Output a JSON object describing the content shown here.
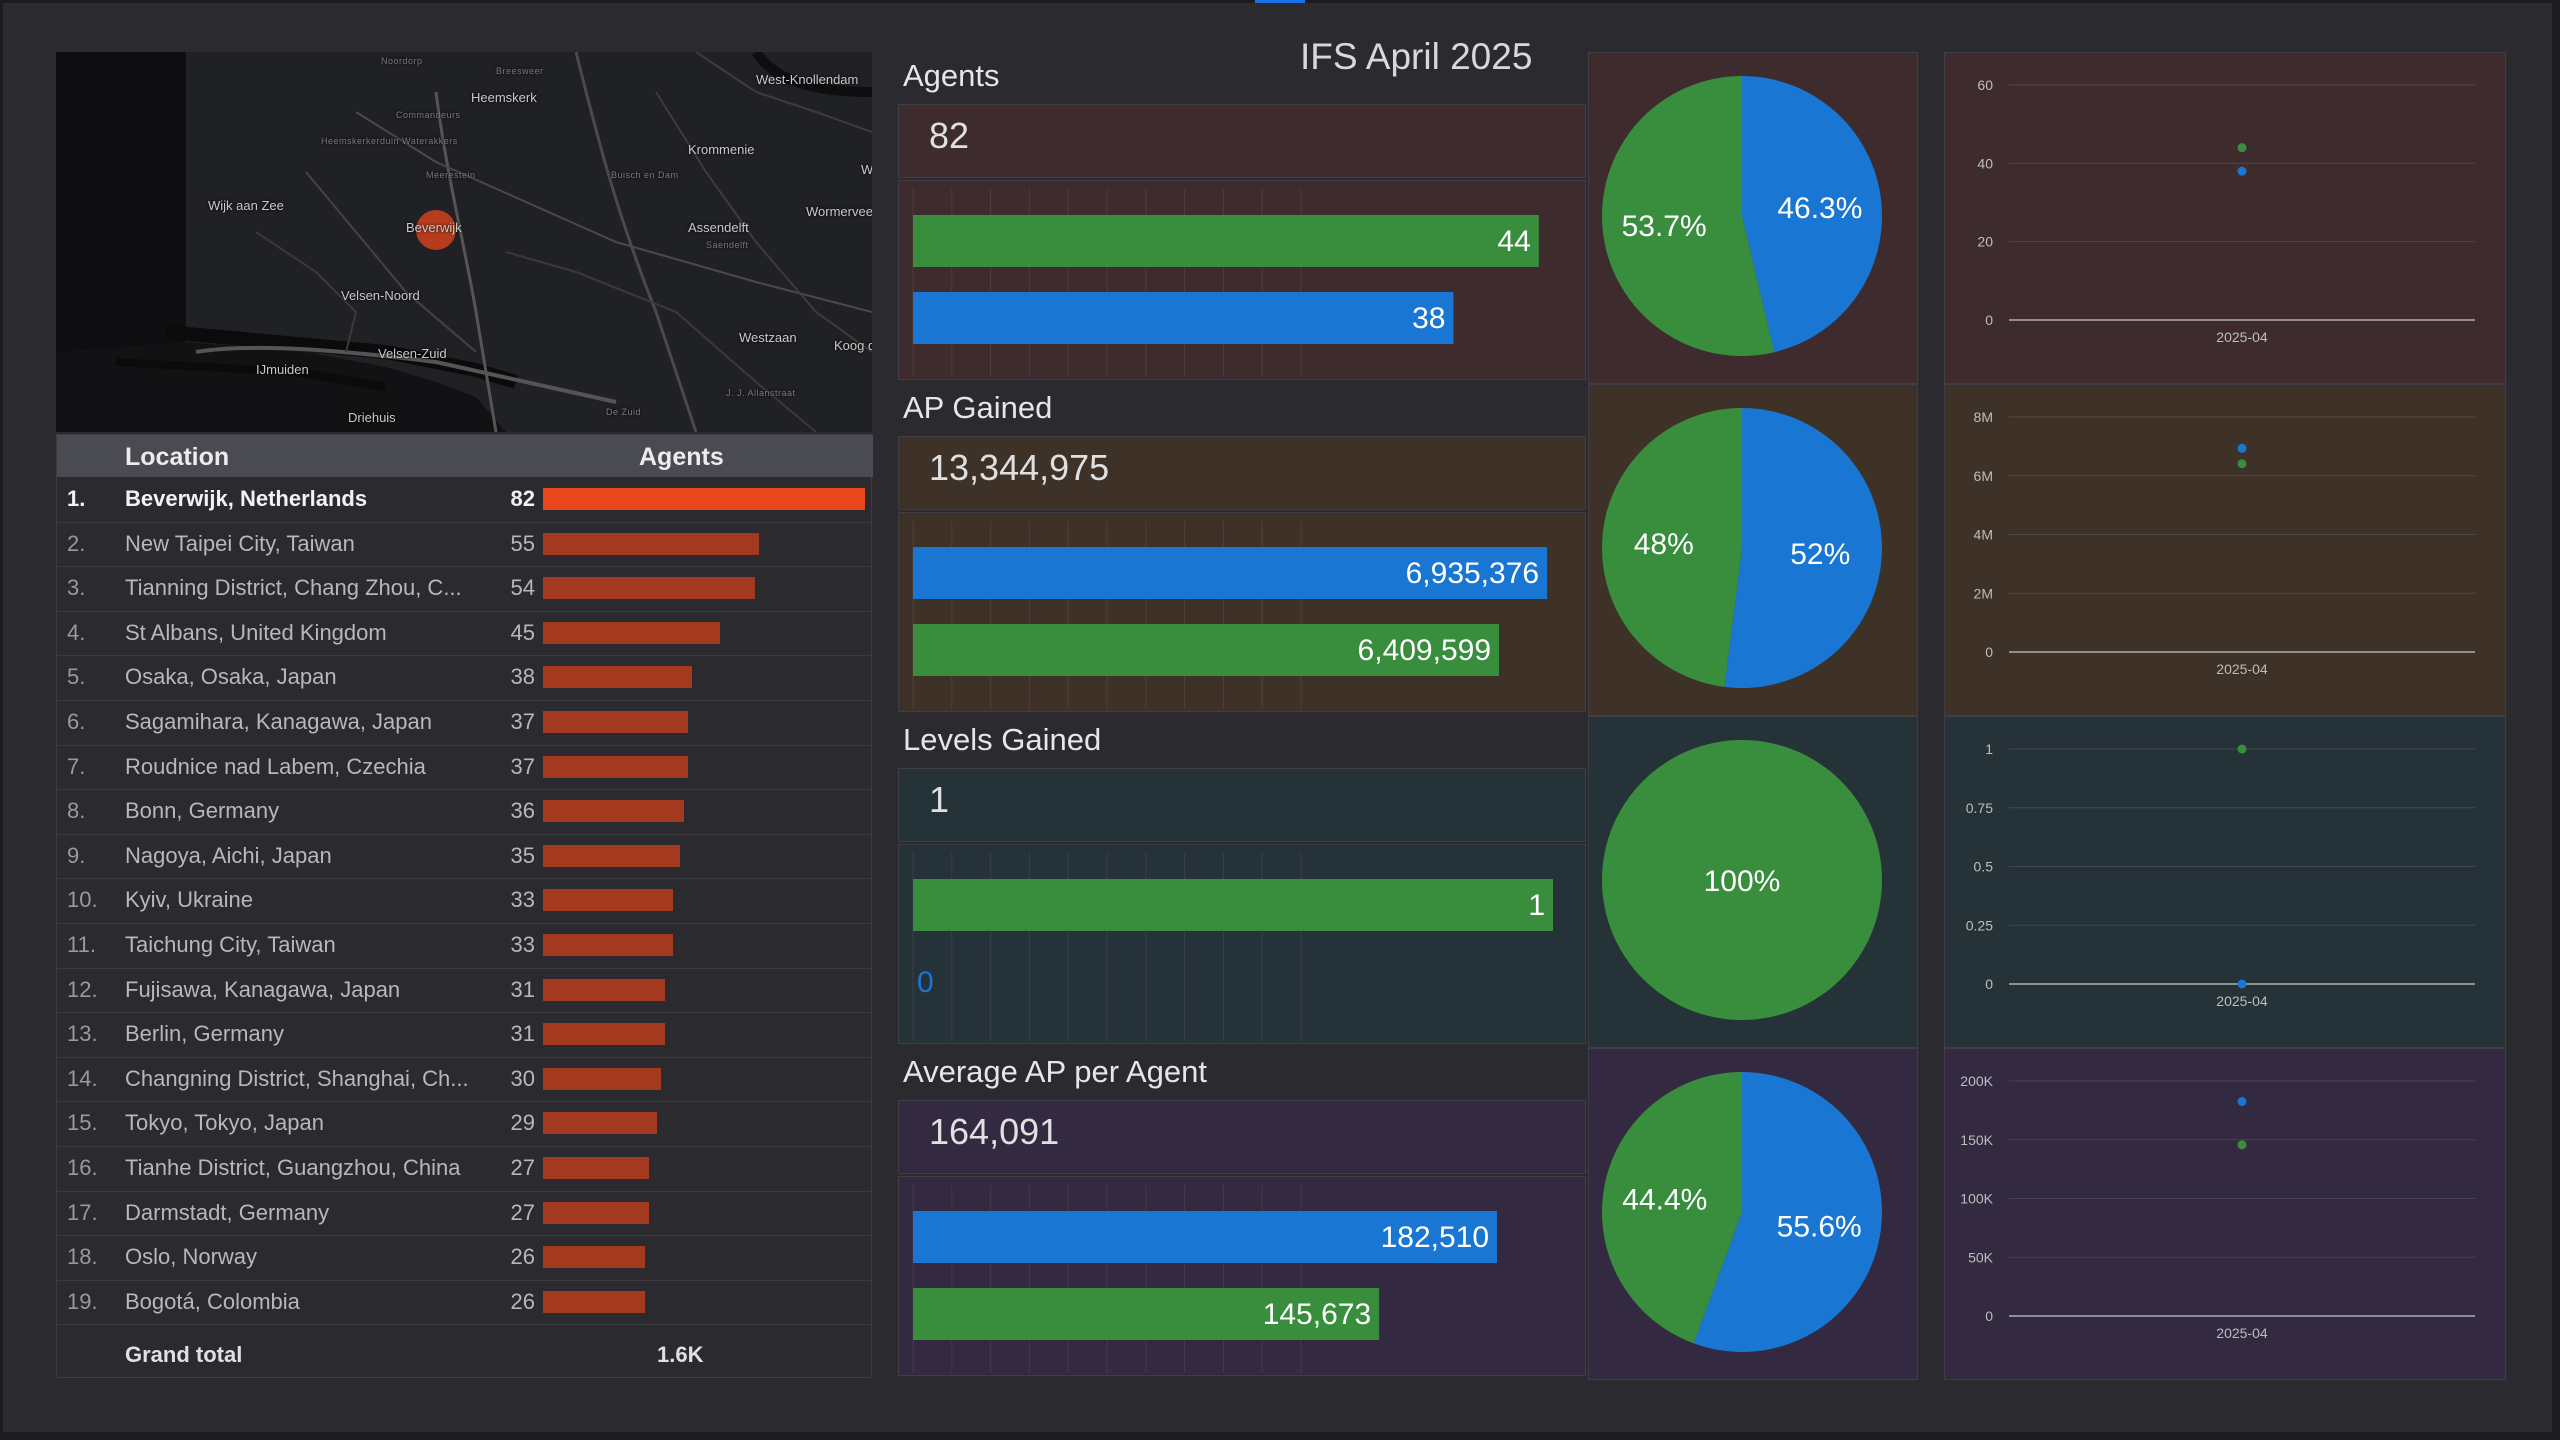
{
  "dashboard_title": "IFS April 2025",
  "colors": {
    "green": "#388e3c",
    "blue": "#1976d2",
    "bar_top": "#e8461b",
    "bar": "#a33a20",
    "sec1_bg": "#3e2b2e",
    "sec2_bg": "#3e3128",
    "sec3_bg": "#253238",
    "sec4_bg": "#332940"
  },
  "map": {
    "places": [
      "Noordorp",
      "Breesweer",
      "West-Knollendam",
      "Heemskerk",
      "Commandeurs",
      "Heemskerkerduin Waterakkers",
      "Krommenie",
      "Meerestein",
      "Buisch en Dam",
      "Wijk aan Zee",
      "Beverwijk",
      "Assendelft",
      "Saendelft",
      "Wormerveer",
      "Velsen-Noord",
      "Westzaan",
      "Velsen-Zuid",
      "Koog de Z",
      "IJmuiden",
      "J. J. Allanstraat",
      "De Zuid",
      "Driehuis",
      "W"
    ]
  },
  "table": {
    "headers": {
      "location": "Location",
      "agents": "Agents"
    },
    "rows": [
      {
        "num": "1.",
        "location": "Beverwijk, Netherlands",
        "agents": 82
      },
      {
        "num": "2.",
        "location": "New Taipei City, Taiwan",
        "agents": 55
      },
      {
        "num": "3.",
        "location": "Tianning District, Chang Zhou, C...",
        "agents": 54
      },
      {
        "num": "4.",
        "location": "St Albans, United Kingdom",
        "agents": 45
      },
      {
        "num": "5.",
        "location": "Osaka, Osaka, Japan",
        "agents": 38
      },
      {
        "num": "6.",
        "location": "Sagamihara, Kanagawa, Japan",
        "agents": 37
      },
      {
        "num": "7.",
        "location": "Roudnice nad Labem, Czechia",
        "agents": 37
      },
      {
        "num": "8.",
        "location": "Bonn, Germany",
        "agents": 36
      },
      {
        "num": "9.",
        "location": "Nagoya, Aichi, Japan",
        "agents": 35
      },
      {
        "num": "10.",
        "location": "Kyiv, Ukraine",
        "agents": 33
      },
      {
        "num": "11.",
        "location": "Taichung City, Taiwan",
        "agents": 33
      },
      {
        "num": "12.",
        "location": "Fujisawa, Kanagawa, Japan",
        "agents": 31
      },
      {
        "num": "13.",
        "location": "Berlin, Germany",
        "agents": 31
      },
      {
        "num": "14.",
        "location": "Changning District, Shanghai, Ch...",
        "agents": 30
      },
      {
        "num": "15.",
        "location": "Tokyo, Tokyo, Japan",
        "agents": 29
      },
      {
        "num": "16.",
        "location": "Tianhe District, Guangzhou, China",
        "agents": 27
      },
      {
        "num": "17.",
        "location": "Darmstadt, Germany",
        "agents": 27
      },
      {
        "num": "18.",
        "location": "Oslo, Norway",
        "agents": 26
      },
      {
        "num": "19.",
        "location": "Bogotá, Colombia",
        "agents": 26
      }
    ],
    "grand_total": {
      "label": "Grand total",
      "value": "1.6K"
    }
  },
  "chart_data": [
    {
      "type": "bar",
      "title": "Agents",
      "scorecard": "82",
      "orientation": "horizontal",
      "series": [
        {
          "name": "green",
          "color": "green",
          "value": 44,
          "label": "44"
        },
        {
          "name": "blue",
          "color": "blue",
          "value": 38,
          "label": "38"
        }
      ],
      "xlim": [
        0,
        45
      ],
      "pie": [
        {
          "name": "blue",
          "color": "blue",
          "value": 46.3,
          "label": "46.3%"
        },
        {
          "name": "green",
          "color": "green",
          "value": 53.7,
          "label": "53.7%"
        }
      ],
      "trend": {
        "type": "scatter",
        "x": [
          "2025-04"
        ],
        "ylim": [
          0,
          60
        ],
        "yticks": [
          "0",
          "20",
          "40",
          "60"
        ],
        "yticks_values": [
          0,
          20,
          40,
          60
        ],
        "points": [
          {
            "color": "green",
            "x": "2025-04",
            "y": 44
          },
          {
            "color": "blue",
            "x": "2025-04",
            "y": 38
          }
        ]
      }
    },
    {
      "type": "bar",
      "title": "AP Gained",
      "scorecard": "13,344,975",
      "orientation": "horizontal",
      "series": [
        {
          "name": "blue",
          "color": "blue",
          "value": 6935376,
          "label": "6,935,376"
        },
        {
          "name": "green",
          "color": "green",
          "value": 6409599,
          "label": "6,409,599"
        }
      ],
      "xlim": [
        0,
        7000000
      ],
      "pie": [
        {
          "name": "blue",
          "color": "blue",
          "value": 52,
          "label": "52%"
        },
        {
          "name": "green",
          "color": "green",
          "value": 48,
          "label": "48%"
        }
      ],
      "trend": {
        "type": "scatter",
        "x": [
          "2025-04"
        ],
        "ylim": [
          0,
          8000000
        ],
        "yticks": [
          "0",
          "2M",
          "4M",
          "6M",
          "8M"
        ],
        "yticks_values": [
          0,
          2000000,
          4000000,
          6000000,
          8000000
        ],
        "points": [
          {
            "color": "blue",
            "x": "2025-04",
            "y": 6935376
          },
          {
            "color": "green",
            "x": "2025-04",
            "y": 6409599
          }
        ]
      }
    },
    {
      "type": "bar",
      "title": "Levels Gained",
      "scorecard": "1",
      "orientation": "horizontal",
      "series": [
        {
          "name": "green",
          "color": "green",
          "value": 1,
          "label": "1"
        },
        {
          "name": "blue",
          "color": "blue",
          "value": 0,
          "label": "0"
        }
      ],
      "xlim": [
        0,
        1
      ],
      "pie": [
        {
          "name": "green",
          "color": "green",
          "value": 100,
          "label": "100%"
        }
      ],
      "trend": {
        "type": "scatter",
        "x": [
          "2025-04"
        ],
        "ylim": [
          0,
          1
        ],
        "yticks": [
          "0",
          "0.25",
          "0.5",
          "0.75",
          "1"
        ],
        "yticks_values": [
          0,
          0.25,
          0.5,
          0.75,
          1
        ],
        "points": [
          {
            "color": "green",
            "x": "2025-04",
            "y": 1
          },
          {
            "color": "blue",
            "x": "2025-04",
            "y": 0
          }
        ]
      }
    },
    {
      "type": "bar",
      "title": "Average AP per Agent",
      "scorecard": "164,091",
      "orientation": "horizontal",
      "series": [
        {
          "name": "blue",
          "color": "blue",
          "value": 182510,
          "label": "182,510"
        },
        {
          "name": "green",
          "color": "green",
          "value": 145673,
          "label": "145,673"
        }
      ],
      "xlim": [
        0,
        200000
      ],
      "pie": [
        {
          "name": "blue",
          "color": "blue",
          "value": 55.6,
          "label": "55.6%"
        },
        {
          "name": "green",
          "color": "green",
          "value": 44.4,
          "label": "44.4%"
        }
      ],
      "trend": {
        "type": "scatter",
        "x": [
          "2025-04"
        ],
        "ylim": [
          0,
          200000
        ],
        "yticks": [
          "0",
          "50K",
          "100K",
          "150K",
          "200K"
        ],
        "yticks_values": [
          0,
          50000,
          100000,
          150000,
          200000
        ],
        "points": [
          {
            "color": "blue",
            "x": "2025-04",
            "y": 182510
          },
          {
            "color": "green",
            "x": "2025-04",
            "y": 145673
          }
        ]
      }
    }
  ]
}
